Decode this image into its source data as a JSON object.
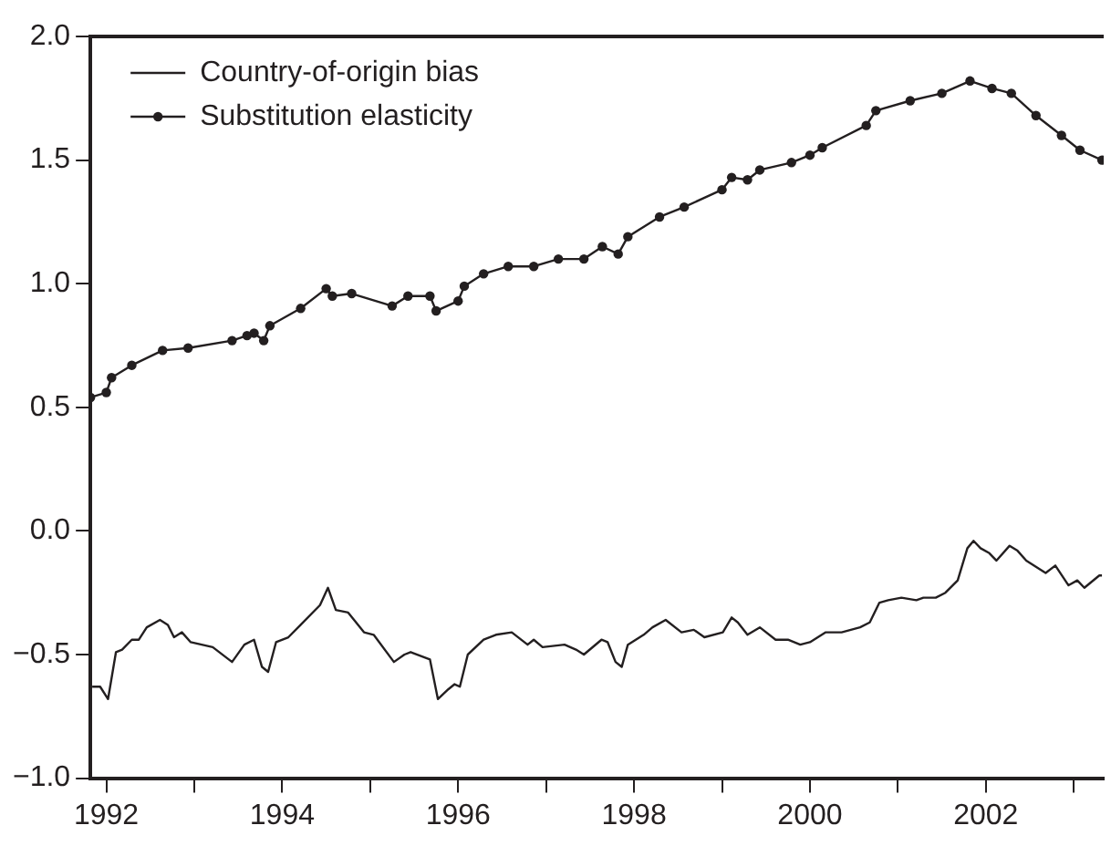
{
  "chart_data": {
    "type": "line",
    "xlim": [
      1991.82,
      2003.34
    ],
    "ylim": [
      -1,
      2
    ],
    "xticks": [
      {
        "value": 1992,
        "label": "1992"
      },
      {
        "value": 1993,
        "label": null
      },
      {
        "value": 1994,
        "label": "1994"
      },
      {
        "value": 1995,
        "label": null
      },
      {
        "value": 1996,
        "label": "1996"
      },
      {
        "value": 1997,
        "label": null
      },
      {
        "value": 1998,
        "label": "1998"
      },
      {
        "value": 1999,
        "label": null
      },
      {
        "value": 2000,
        "label": "2000"
      },
      {
        "value": 2001,
        "label": null
      },
      {
        "value": 2002,
        "label": "2002"
      },
      {
        "value": 2003,
        "label": null
      }
    ],
    "yticks": [
      {
        "value": -1,
        "label": "−1.0"
      },
      {
        "value": -0.5,
        "label": "−0.5"
      },
      {
        "value": 0,
        "label": "0.0"
      },
      {
        "value": 0.5,
        "label": "0.5"
      },
      {
        "value": 1,
        "label": "1.0"
      },
      {
        "value": 1.5,
        "label": "1.5"
      },
      {
        "value": 2,
        "label": "2.0"
      }
    ],
    "grid": false,
    "legend": "top left",
    "series": [
      {
        "name": "Country-of-origin bias",
        "color": "#231f20",
        "marker": "none",
        "x": [
          1991.84,
          1991.93,
          1992.02,
          1992.11,
          1992.18,
          1992.29,
          1992.37,
          1992.46,
          1992.61,
          1992.7,
          1992.77,
          1992.86,
          1992.96,
          1993.21,
          1993.43,
          1993.57,
          1993.68,
          1993.77,
          1993.84,
          1993.93,
          1994.07,
          1994.21,
          1994.43,
          1994.52,
          1994.61,
          1994.75,
          1994.93,
          1995.04,
          1995.27,
          1995.39,
          1995.46,
          1995.68,
          1995.77,
          1995.89,
          1995.96,
          1996.02,
          1996.11,
          1996.29,
          1996.43,
          1996.61,
          1996.79,
          1996.86,
          1996.96,
          1997.21,
          1997.34,
          1997.43,
          1997.63,
          1997.7,
          1997.79,
          1997.86,
          1997.93,
          1998.11,
          1998.21,
          1998.36,
          1998.54,
          1998.68,
          1998.8,
          1999.01,
          1999.11,
          1999.18,
          1999.29,
          1999.43,
          1999.61,
          1999.75,
          1999.89,
          2000.0,
          2000.18,
          2000.36,
          2000.57,
          2000.68,
          2000.79,
          2000.89,
          2001.04,
          2001.21,
          2001.29,
          2001.43,
          2001.54,
          2001.68,
          2001.79,
          2001.86,
          2001.94,
          2002.04,
          2002.12,
          2002.27,
          2002.36,
          2002.46,
          2002.68,
          2002.79,
          2002.94,
          2003.04,
          2003.12,
          2003.29,
          2003.32
        ],
        "values": [
          -0.63,
          -0.63,
          -0.68,
          -0.49,
          -0.48,
          -0.44,
          -0.44,
          -0.39,
          -0.36,
          -0.38,
          -0.43,
          -0.41,
          -0.45,
          -0.47,
          -0.53,
          -0.46,
          -0.44,
          -0.55,
          -0.57,
          -0.45,
          -0.43,
          -0.38,
          -0.3,
          -0.23,
          -0.32,
          -0.33,
          -0.41,
          -0.42,
          -0.53,
          -0.5,
          -0.49,
          -0.52,
          -0.68,
          -0.64,
          -0.62,
          -0.63,
          -0.5,
          -0.44,
          -0.42,
          -0.41,
          -0.46,
          -0.44,
          -0.47,
          -0.46,
          -0.48,
          -0.5,
          -0.44,
          -0.45,
          -0.53,
          -0.55,
          -0.46,
          -0.42,
          -0.39,
          -0.36,
          -0.41,
          -0.4,
          -0.43,
          -0.41,
          -0.35,
          -0.37,
          -0.42,
          -0.39,
          -0.44,
          -0.44,
          -0.46,
          -0.45,
          -0.41,
          -0.41,
          -0.39,
          -0.37,
          -0.29,
          -0.28,
          -0.27,
          -0.28,
          -0.27,
          -0.27,
          -0.25,
          -0.2,
          -0.07,
          -0.04,
          -0.07,
          -0.09,
          -0.12,
          -0.06,
          -0.08,
          -0.12,
          -0.17,
          -0.14,
          -0.22,
          -0.2,
          -0.23,
          -0.18,
          -0.18
        ]
      },
      {
        "name": "Substitution elasticity",
        "color": "#231f20",
        "marker": "circle",
        "x": [
          1991.82,
          1992.0,
          1992.06,
          1992.29,
          1992.64,
          1992.93,
          1993.43,
          1993.6,
          1993.68,
          1993.79,
          1993.86,
          1994.21,
          1994.5,
          1994.57,
          1994.79,
          1995.25,
          1995.43,
          1995.68,
          1995.75,
          1996.0,
          1996.07,
          1996.29,
          1996.57,
          1996.86,
          1997.14,
          1997.43,
          1997.64,
          1997.82,
          1997.93,
          1998.29,
          1998.57,
          1999.0,
          1999.11,
          1999.29,
          1999.43,
          1999.79,
          2000.0,
          2000.14,
          2000.64,
          2000.75,
          2001.14,
          2001.5,
          2001.82,
          2002.07,
          2002.29,
          2002.57,
          2002.86,
          2003.07,
          2003.32
        ],
        "values": [
          0.54,
          0.56,
          0.62,
          0.67,
          0.73,
          0.74,
          0.77,
          0.79,
          0.8,
          0.77,
          0.83,
          0.9,
          0.98,
          0.95,
          0.96,
          0.91,
          0.95,
          0.95,
          0.89,
          0.93,
          0.99,
          1.04,
          1.07,
          1.07,
          1.1,
          1.1,
          1.15,
          1.12,
          1.19,
          1.27,
          1.31,
          1.38,
          1.43,
          1.42,
          1.46,
          1.49,
          1.52,
          1.55,
          1.64,
          1.7,
          1.74,
          1.77,
          1.82,
          1.79,
          1.77,
          1.68,
          1.6,
          1.54,
          1.5
        ]
      }
    ]
  }
}
